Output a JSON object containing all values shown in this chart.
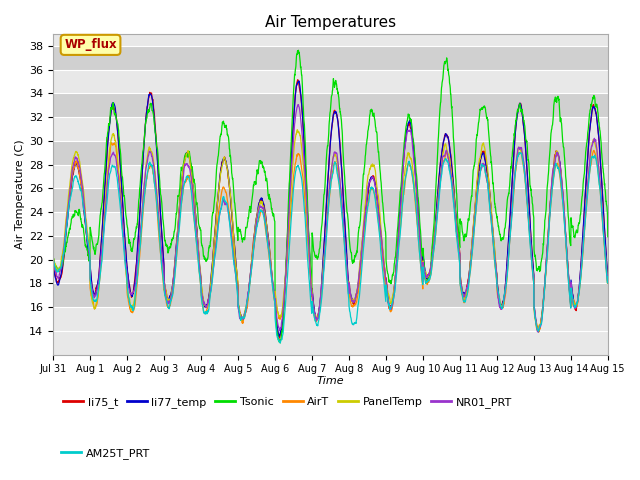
{
  "title": "Air Temperatures",
  "xlabel": "Time",
  "ylabel": "Air Temperature (C)",
  "ylim": [
    12,
    39
  ],
  "yticks": [
    14,
    16,
    18,
    20,
    22,
    24,
    26,
    28,
    30,
    32,
    34,
    36,
    38
  ],
  "xtick_labels": [
    "Jul 31",
    "Aug 1",
    "Aug 2",
    "Aug 3",
    "Aug 4",
    "Aug 5",
    "Aug 6",
    "Aug 7",
    "Aug 8",
    "Aug 9",
    "Aug 10",
    "Aug 11",
    "Aug 12",
    "Aug 13",
    "Aug 14",
    "Aug 15"
  ],
  "legend_entries": [
    "li75_t",
    "li77_temp",
    "Tsonic",
    "AirT",
    "PanelTemp",
    "NR01_PRT",
    "AM25T_PRT"
  ],
  "line_colors": [
    "#dd0000",
    "#0000cc",
    "#00dd00",
    "#ff8800",
    "#cccc00",
    "#9933cc",
    "#00cccc"
  ],
  "annotation_text": "WP_flux",
  "annotation_bg": "#ffffaa",
  "annotation_border": "#cc9900",
  "annotation_text_color": "#aa0000",
  "plot_bg_light": "#e8e8e8",
  "plot_bg_dark": "#d0d0d0",
  "n_days": 15,
  "pts_per_day": 144,
  "night_base": 15.5,
  "day_amplitude": 7.0
}
